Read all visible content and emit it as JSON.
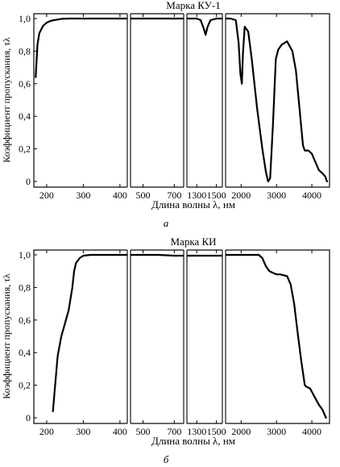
{
  "chart_data": [
    {
      "type": "line",
      "title": "Марка КУ-1",
      "xlabel": "Длина волны λ, нм",
      "ylabel": "Коэффициент пропускания, τλ",
      "caption": "а",
      "ylim": [
        0,
        1.0
      ],
      "yticks": [
        "0",
        "0,2",
        "0,4",
        "0,6",
        "0,8",
        "1,0"
      ],
      "y_tick_values": [
        0,
        0.2,
        0.4,
        0.6,
        0.8,
        1.0
      ],
      "segments": [
        {
          "xlim": [
            165,
            420
          ],
          "xticks": [
            200,
            300,
            400
          ],
          "xtick_labels": [
            "200",
            "300",
            "400"
          ],
          "x": [
            170,
            175,
            180,
            190,
            200,
            210,
            220,
            240,
            260,
            300,
            350,
            400,
            420
          ],
          "y": [
            0.64,
            0.84,
            0.91,
            0.955,
            0.975,
            0.985,
            0.99,
            0.998,
            1.0,
            1.0,
            1.0,
            1.0,
            1.0
          ]
        },
        {
          "xlim": [
            420,
            760
          ],
          "xticks": [
            500,
            700
          ],
          "xtick_labels": [
            "500",
            "700"
          ],
          "x": [
            420,
            500,
            600,
            700,
            760
          ],
          "y": [
            1.0,
            1.0,
            1.0,
            1.0,
            1.0
          ]
        },
        {
          "xlim": [
            1200,
            1560
          ],
          "xticks": [
            1300,
            1500
          ],
          "xtick_labels": [
            "1300",
            "1500"
          ],
          "x": [
            1200,
            1300,
            1340,
            1370,
            1390,
            1410,
            1440,
            1500,
            1560
          ],
          "y": [
            1.0,
            1.0,
            0.99,
            0.94,
            0.9,
            0.95,
            0.99,
            1.0,
            1.0
          ]
        },
        {
          "xlim": [
            1560,
            4500
          ],
          "xticks": [
            2000,
            3000,
            4000
          ],
          "xtick_labels": [
            "2000",
            "3000",
            "4000"
          ],
          "x": [
            1560,
            1700,
            1850,
            1930,
            1980,
            2020,
            2050,
            2100,
            2200,
            2300,
            2450,
            2600,
            2700,
            2760,
            2820,
            2900,
            2980,
            3050,
            3150,
            3300,
            3450,
            3550,
            3650,
            3750,
            3800,
            3900,
            4000,
            4100,
            4200,
            4300,
            4380,
            4430
          ],
          "y": [
            1.0,
            1.0,
            0.99,
            0.85,
            0.66,
            0.6,
            0.78,
            0.95,
            0.92,
            0.75,
            0.45,
            0.2,
            0.06,
            0.0,
            0.02,
            0.35,
            0.75,
            0.81,
            0.84,
            0.86,
            0.8,
            0.68,
            0.45,
            0.22,
            0.19,
            0.19,
            0.17,
            0.12,
            0.07,
            0.05,
            0.03,
            0.0
          ]
        }
      ]
    },
    {
      "type": "line",
      "title": "Марка КИ",
      "xlabel": "Длина волны λ, нм",
      "ylabel": "Коэффициент пропускания, τλ",
      "caption": "б",
      "ylim": [
        0,
        1.0
      ],
      "yticks": [
        "0",
        "0,2",
        "0,4",
        "0,6",
        "0,8",
        "1,0"
      ],
      "y_tick_values": [
        0,
        0.2,
        0.4,
        0.6,
        0.8,
        1.0
      ],
      "segments": [
        {
          "xlim": [
            165,
            420
          ],
          "xticks": [
            200,
            300,
            400
          ],
          "xtick_labels": [
            "200",
            "300",
            "400"
          ],
          "x": [
            217,
            222,
            230,
            240,
            250,
            260,
            270,
            275,
            280,
            290,
            300,
            320,
            360,
            400,
            420
          ],
          "y": [
            0.04,
            0.17,
            0.38,
            0.5,
            0.58,
            0.66,
            0.8,
            0.9,
            0.95,
            0.98,
            0.995,
            1.0,
            1.0,
            1.0,
            1.0
          ]
        },
        {
          "xlim": [
            420,
            760
          ],
          "xticks": [
            500,
            700
          ],
          "xtick_labels": [
            "500",
            "700"
          ],
          "x": [
            420,
            500,
            600,
            700,
            760
          ],
          "y": [
            1.0,
            1.0,
            1.0,
            0.995,
            0.995
          ]
        },
        {
          "xlim": [
            1200,
            1560
          ],
          "xticks": [
            1300,
            1500
          ],
          "xtick_labels": [
            "1300",
            "1500"
          ],
          "x": [
            1200,
            1300,
            1400,
            1500,
            1560
          ],
          "y": [
            0.995,
            0.995,
            0.995,
            0.995,
            0.995
          ]
        },
        {
          "xlim": [
            1560,
            4500
          ],
          "xticks": [
            2000,
            3000,
            4000
          ],
          "xtick_labels": [
            "2000",
            "3000",
            "4000"
          ],
          "x": [
            1560,
            2000,
            2500,
            2600,
            2700,
            2800,
            3000,
            3100,
            3300,
            3400,
            3500,
            3600,
            3700,
            3800,
            3850,
            3950,
            4100,
            4200,
            4300,
            4400
          ],
          "y": [
            1.0,
            1.0,
            1.0,
            0.98,
            0.93,
            0.9,
            0.88,
            0.88,
            0.87,
            0.82,
            0.7,
            0.52,
            0.35,
            0.2,
            0.19,
            0.18,
            0.12,
            0.08,
            0.05,
            0.0
          ]
        }
      ]
    }
  ]
}
